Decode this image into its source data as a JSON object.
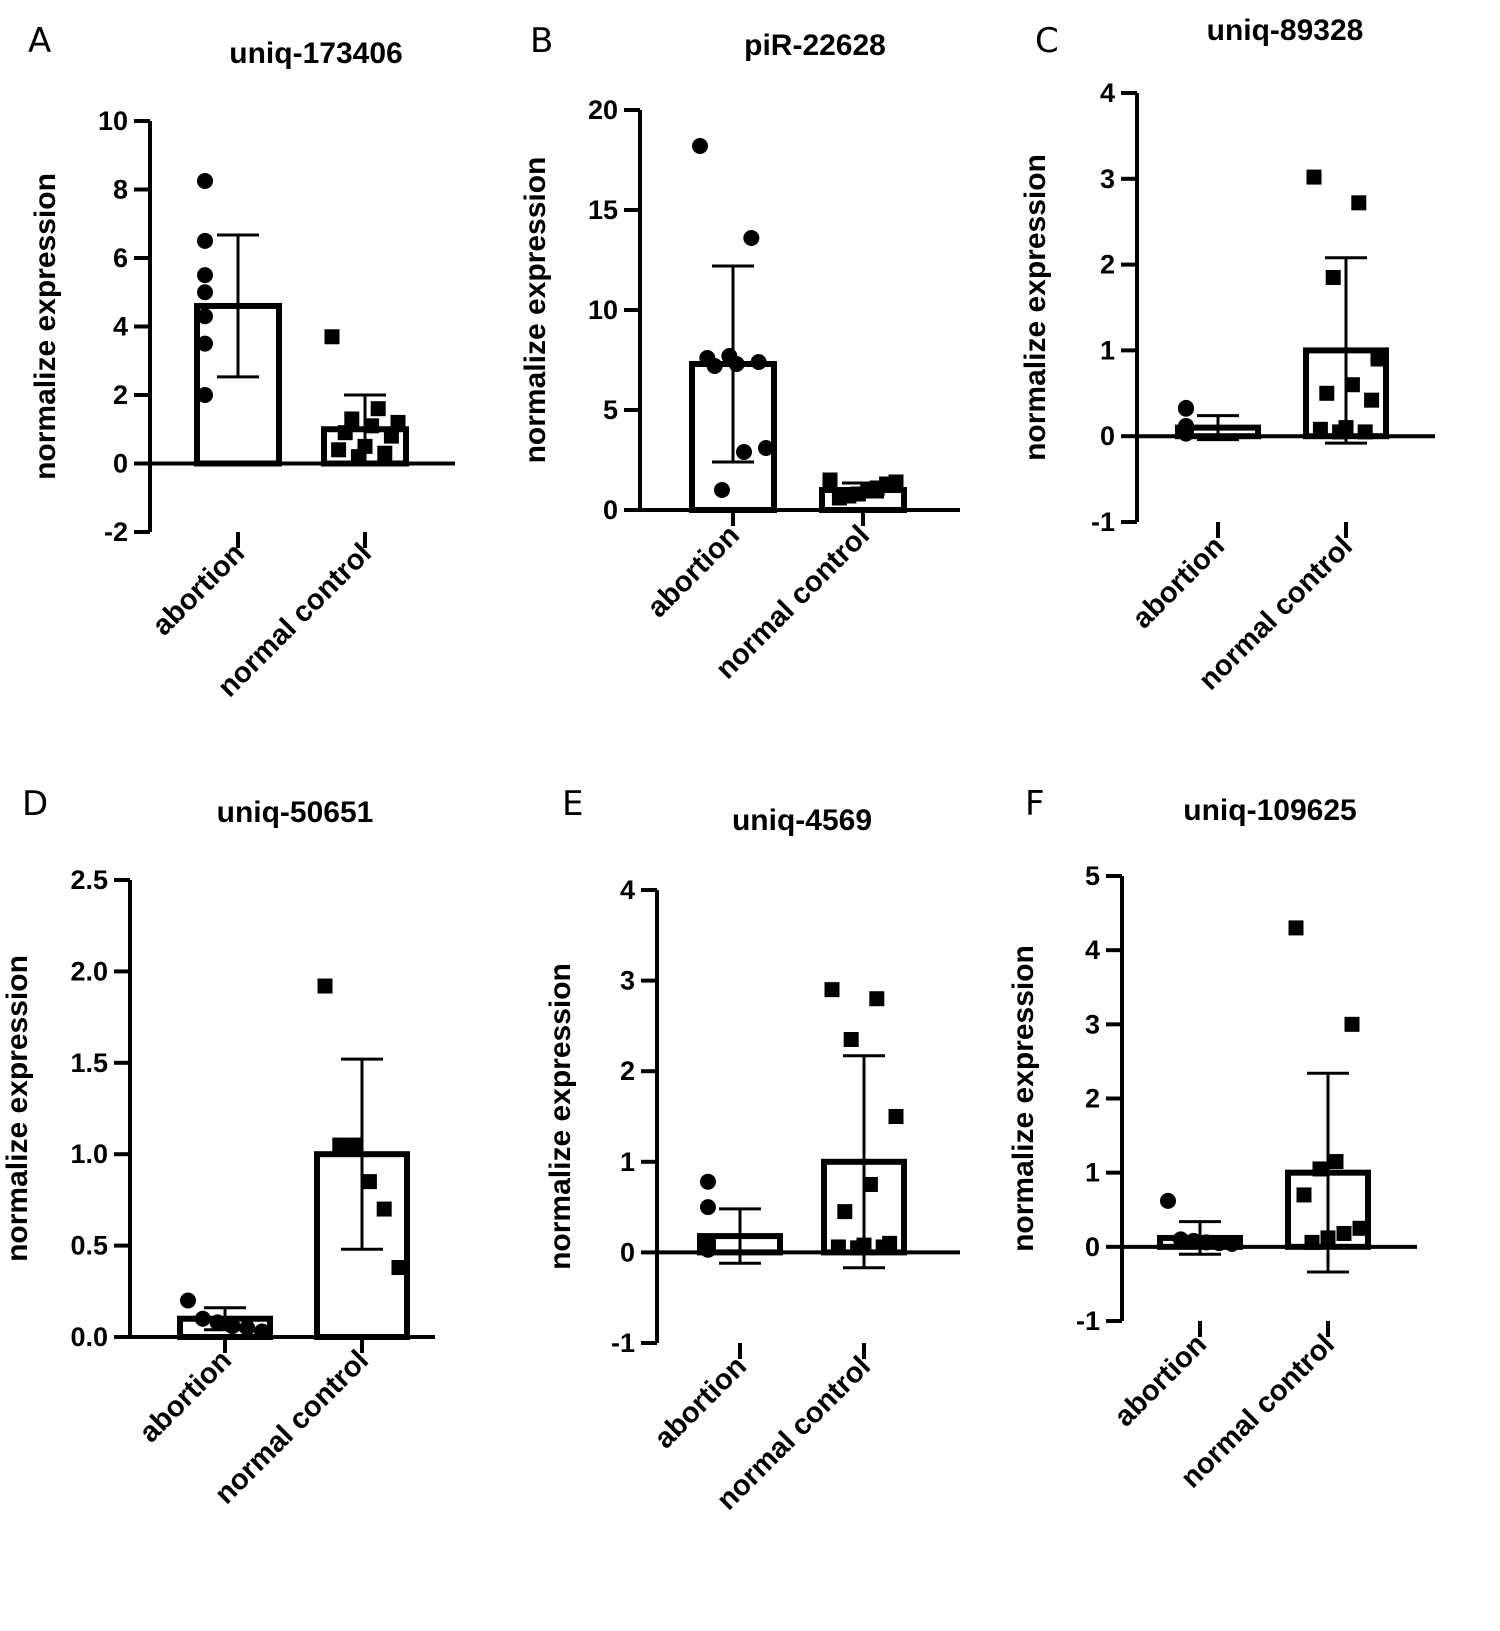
{
  "chart_data": [
    {
      "panel": "A",
      "title": "uniq-173406",
      "type": "bar",
      "ylabel": "normalize  expression",
      "categories": [
        "abortion",
        "normal control"
      ],
      "ylim": [
        -2,
        10
      ],
      "yticks": [
        -2,
        0,
        2,
        4,
        6,
        8,
        10
      ],
      "series": [
        {
          "name": "abortion",
          "mean": 4.6,
          "sd": 2.07,
          "marker": "circle",
          "points": [
            8.25,
            6.5,
            5.0,
            5.5,
            4.3,
            3.5,
            2.0
          ]
        },
        {
          "name": "normal control",
          "mean": 1.0,
          "sd": 1.0,
          "marker": "square",
          "points": [
            3.7,
            1.6,
            1.3,
            1.2,
            1.1,
            0.9,
            0.8,
            0.5,
            0.4,
            0.3,
            0.2
          ]
        }
      ]
    },
    {
      "panel": "B",
      "title": "piR-22628",
      "type": "bar",
      "ylabel": "normalize  expression",
      "categories": [
        "abortion",
        "normal control"
      ],
      "ylim": [
        0,
        20
      ],
      "yticks": [
        0,
        5,
        10,
        15,
        20
      ],
      "series": [
        {
          "name": "abortion",
          "mean": 7.3,
          "sd": 4.9,
          "marker": "circle",
          "points": [
            18.2,
            13.6,
            7.7,
            7.6,
            7.4,
            7.3,
            7.2,
            3.1,
            2.9,
            1.0
          ]
        },
        {
          "name": "normal control",
          "mean": 1.0,
          "sd": 0.35,
          "marker": "square",
          "points": [
            1.5,
            1.4,
            1.3,
            1.1,
            1.0,
            0.8,
            0.7,
            0.6
          ]
        }
      ]
    },
    {
      "panel": "C",
      "title": "uniq-89328",
      "type": "bar",
      "ylabel": "normalize  expression",
      "categories": [
        "abortion",
        "normal control"
      ],
      "ylim": [
        -1,
        4
      ],
      "yticks": [
        -1,
        0,
        1,
        2,
        3,
        4
      ],
      "series": [
        {
          "name": "abortion",
          "mean": 0.1,
          "sd": 0.14,
          "marker": "circle",
          "points": [
            0.33,
            0.32,
            0.12,
            0.1,
            0.08,
            0.05,
            0.03
          ]
        },
        {
          "name": "normal control",
          "mean": 1.0,
          "sd": 1.08,
          "marker": "square",
          "points": [
            3.02,
            2.72,
            1.85,
            0.9,
            0.6,
            0.5,
            0.42,
            0.1,
            0.08,
            0.05,
            0.05
          ]
        }
      ]
    },
    {
      "panel": "D",
      "title": "uniq-50651",
      "type": "bar",
      "ylabel": "normalize  expression",
      "categories": [
        "abortion",
        "normal control"
      ],
      "ylim": [
        0.0,
        2.5
      ],
      "yticks": [
        0.0,
        0.5,
        1.0,
        1.5,
        2.0,
        2.5
      ],
      "series": [
        {
          "name": "abortion",
          "mean": 0.1,
          "sd": 0.06,
          "marker": "circle",
          "points": [
            0.2,
            0.1,
            0.08,
            0.06,
            0.05,
            0.03
          ]
        },
        {
          "name": "normal control",
          "mean": 1.0,
          "sd": 0.52,
          "marker": "square",
          "points": [
            1.92,
            1.05,
            1.05,
            0.85,
            0.7,
            0.38
          ]
        }
      ]
    },
    {
      "panel": "E",
      "title": "uniq-4569",
      "type": "bar",
      "ylabel": "normalize  expression",
      "categories": [
        "abortion",
        "normal control"
      ],
      "ylim": [
        -1,
        4
      ],
      "yticks": [
        -1,
        0,
        1,
        2,
        3,
        4
      ],
      "series": [
        {
          "name": "abortion",
          "mean": 0.18,
          "sd": 0.3,
          "marker": "circle",
          "points": [
            0.78,
            0.5,
            0.12,
            0.08,
            0.05,
            0.03,
            0.03
          ]
        },
        {
          "name": "normal control",
          "mean": 1.0,
          "sd": 1.17,
          "marker": "square",
          "points": [
            2.9,
            2.8,
            2.35,
            1.5,
            0.75,
            0.45,
            0.1,
            0.08,
            0.06,
            0.06,
            0.05
          ]
        }
      ]
    },
    {
      "panel": "F",
      "title": "uniq-109625",
      "type": "bar",
      "ylabel": "normalize  expression",
      "categories": [
        "abortion",
        "normal control"
      ],
      "ylim": [
        -1,
        5
      ],
      "yticks": [
        -1,
        0,
        1,
        2,
        3,
        4,
        5
      ],
      "series": [
        {
          "name": "abortion",
          "mean": 0.12,
          "sd": 0.22,
          "marker": "circle",
          "points": [
            0.62,
            0.1,
            0.08,
            0.06,
            0.05,
            0.04
          ]
        },
        {
          "name": "normal control",
          "mean": 1.0,
          "sd": 1.34,
          "marker": "square",
          "points": [
            4.3,
            3.0,
            1.15,
            1.05,
            0.7,
            0.25,
            0.18,
            0.12,
            0.06
          ]
        }
      ]
    }
  ]
}
